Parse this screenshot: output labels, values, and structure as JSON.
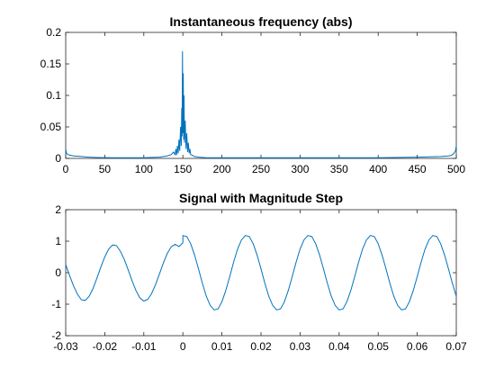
{
  "chart_data": [
    {
      "type": "line",
      "title": "Instantaneous frequency (abs)",
      "xlabel": "",
      "ylabel": "",
      "xlim": [
        0,
        500
      ],
      "ylim": [
        0,
        0.2
      ],
      "xticks": [
        0,
        50,
        100,
        150,
        200,
        250,
        300,
        350,
        400,
        450,
        500
      ],
      "yticks": [
        0,
        0.05,
        0.1,
        0.15,
        0.2
      ],
      "xtick_labels": [
        "0",
        "50",
        "100",
        "150",
        "200",
        "250",
        "300",
        "350",
        "400",
        "450",
        "500"
      ],
      "ytick_labels": [
        "0",
        "0.05",
        "0.1",
        "0.15",
        "0.2"
      ],
      "grid": false,
      "color": "#0072BD",
      "series": [
        {
          "x": [
            0,
            1,
            3,
            6,
            10,
            20,
            30,
            40,
            60,
            80,
            100,
            120,
            130,
            135,
            138,
            140,
            141,
            142,
            143,
            144,
            145,
            146,
            147,
            148,
            148.5,
            149,
            149.5,
            150,
            150.5,
            151,
            151.5,
            152,
            153,
            154,
            155,
            156,
            157,
            158,
            159,
            160,
            162,
            165,
            170,
            180,
            200,
            250,
            300,
            350,
            400,
            450,
            480,
            490,
            494,
            497,
            499,
            500
          ],
          "y": [
            0.015,
            0.008,
            0.006,
            0.005,
            0.004,
            0.003,
            0.002,
            0.0015,
            0.001,
            0.001,
            0.001,
            0.002,
            0.004,
            0.006,
            0.01,
            0.006,
            0.015,
            0.005,
            0.02,
            0.008,
            0.03,
            0.012,
            0.05,
            0.02,
            0.08,
            0.035,
            0.17,
            0.04,
            0.135,
            0.03,
            0.1,
            0.025,
            0.06,
            0.015,
            0.04,
            0.01,
            0.025,
            0.008,
            0.015,
            0.006,
            0.005,
            0.003,
            0.002,
            0.001,
            0.001,
            0.001,
            0.001,
            0.001,
            0.001,
            0.002,
            0.003,
            0.004,
            0.005,
            0.008,
            0.012,
            0.02
          ]
        }
      ]
    },
    {
      "type": "line",
      "title": "Signal with Magnitude Step",
      "xlabel": "",
      "ylabel": "",
      "xlim": [
        -0.03,
        0.07
      ],
      "ylim": [
        -2,
        2
      ],
      "xticks": [
        -0.03,
        -0.02,
        -0.01,
        0,
        0.01,
        0.02,
        0.03,
        0.04,
        0.05,
        0.06,
        0.07
      ],
      "yticks": [
        -2,
        -1,
        0,
        1,
        2
      ],
      "xtick_labels": [
        "-0.03",
        "-0.02",
        "-0.01",
        "0",
        "0.01",
        "0.02",
        "0.03",
        "0.04",
        "0.05",
        "0.06",
        "0.07"
      ],
      "ytick_labels": [
        "-2",
        "-1",
        "0",
        "1",
        "2"
      ],
      "grid": false,
      "color": "#0072BD",
      "series": [
        {
          "x": [
            -0.03,
            -0.029,
            -0.028,
            -0.027,
            -0.026,
            -0.025,
            -0.024,
            -0.023,
            -0.022,
            -0.021,
            -0.02,
            -0.019,
            -0.018,
            -0.017,
            -0.016,
            -0.015,
            -0.014,
            -0.013,
            -0.012,
            -0.011,
            -0.01,
            -0.009,
            -0.008,
            -0.007,
            -0.006,
            -0.005,
            -0.004,
            -0.003,
            -0.002,
            -0.001,
            0,
            0,
            0.001,
            0.002,
            0.003,
            0.004,
            0.005,
            0.006,
            0.007,
            0.008,
            0.009,
            0.01,
            0.011,
            0.012,
            0.013,
            0.014,
            0.015,
            0.016,
            0.017,
            0.018,
            0.019,
            0.02,
            0.021,
            0.022,
            0.023,
            0.024,
            0.025,
            0.026,
            0.027,
            0.028,
            0.029,
            0.03,
            0.031,
            0.032,
            0.033,
            0.034,
            0.035,
            0.036,
            0.037,
            0.038,
            0.039,
            0.04,
            0.041,
            0.042,
            0.043,
            0.044,
            0.045,
            0.046,
            0.047,
            0.048,
            0.049,
            0.05,
            0.051,
            0.052,
            0.053,
            0.054,
            0.055,
            0.056,
            0.057,
            0.058,
            0.059,
            0.06,
            0.061,
            0.062,
            0.063,
            0.064,
            0.065,
            0.066,
            0.067,
            0.068,
            0.069,
            0.07
          ],
          "y": [
            0.26,
            -0.09,
            -0.42,
            -0.68,
            -0.86,
            -0.88,
            -0.75,
            -0.5,
            -0.17,
            0.18,
            0.5,
            0.75,
            0.88,
            0.86,
            0.68,
            0.42,
            0.09,
            -0.26,
            -0.57,
            -0.8,
            -0.9,
            -0.85,
            -0.66,
            -0.38,
            -0.04,
            0.31,
            0.61,
            0.82,
            0.9,
            0.83,
            0.95,
            1.18,
            1.15,
            0.92,
            0.56,
            0.12,
            -0.34,
            -0.75,
            -1.04,
            -1.18,
            -1.15,
            -0.92,
            -0.56,
            -0.12,
            0.34,
            0.75,
            1.04,
            1.18,
            1.15,
            0.92,
            0.56,
            0.12,
            -0.34,
            -0.75,
            -1.04,
            -1.18,
            -1.15,
            -0.92,
            -0.56,
            -0.12,
            0.34,
            0.75,
            1.04,
            1.18,
            1.15,
            0.92,
            0.56,
            0.12,
            -0.34,
            -0.75,
            -1.04,
            -1.18,
            -1.15,
            -0.92,
            -0.56,
            -0.12,
            0.34,
            0.75,
            1.04,
            1.18,
            1.15,
            0.92,
            0.56,
            0.12,
            -0.34,
            -0.75,
            -1.04,
            -1.18,
            -1.15,
            -0.92,
            -0.56,
            -0.12,
            0.34,
            0.75,
            1.04,
            1.18,
            1.15,
            0.92,
            0.56,
            0.12,
            -0.34,
            -0.75
          ]
        }
      ]
    }
  ]
}
